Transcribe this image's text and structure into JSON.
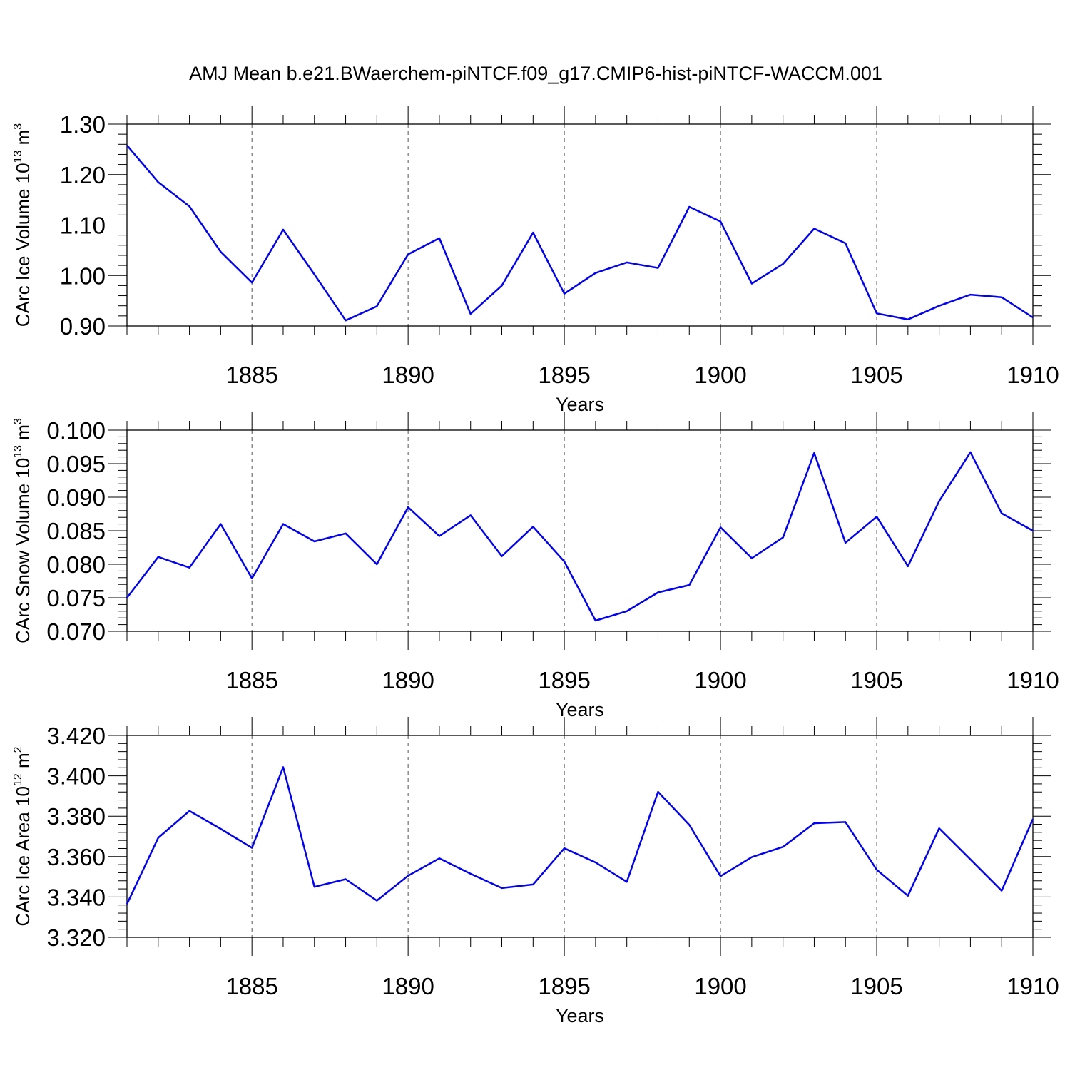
{
  "chart_data": {
    "type": "line",
    "title": "AMJ Mean b.e21.BWaerchem-piNTCF.f09_g17.CMIP6-hist-piNTCF-WACCM.001",
    "line_color": "#0000ff",
    "panels": [
      {
        "ylabel_text": "CArc Ice Volume 10",
        "ylabel_exp": "13",
        "ylabel_unit": " m",
        "ylabel_unit_exp": "3",
        "xlabel": "Years",
        "xlim": [
          1881,
          1910
        ],
        "ylim": [
          0.9,
          1.3
        ],
        "yticks": [
          0.9,
          1.0,
          1.1,
          1.2,
          1.3
        ],
        "ytick_labels": [
          "0.90",
          "1.00",
          "1.10",
          "1.20",
          "1.30"
        ],
        "xticks": [
          1885,
          1890,
          1895,
          1900,
          1905,
          1910
        ],
        "xtick_labels": [
          "1885",
          "1890",
          "1895",
          "1900",
          "1905",
          "1910"
        ],
        "x": [
          1881,
          1882,
          1883,
          1884,
          1885,
          1886,
          1887,
          1888,
          1889,
          1890,
          1891,
          1892,
          1893,
          1894,
          1895,
          1896,
          1897,
          1898,
          1899,
          1900,
          1901,
          1902,
          1903,
          1904,
          1905,
          1906,
          1907,
          1908,
          1909,
          1910
        ],
        "values": [
          1.258,
          1.185,
          1.137,
          1.047,
          0.986,
          1.091,
          1.002,
          0.911,
          0.939,
          1.042,
          1.074,
          0.924,
          0.98,
          1.085,
          0.964,
          1.005,
          1.026,
          1.015,
          1.136,
          1.107,
          0.984,
          1.023,
          1.093,
          1.064,
          0.925,
          0.913,
          0.94,
          0.962,
          0.957,
          0.917
        ]
      },
      {
        "ylabel_text": "CArc Snow Volume 10",
        "ylabel_exp": "13",
        "ylabel_unit": " m",
        "ylabel_unit_exp": "3",
        "xlabel": "Years",
        "xlim": [
          1881,
          1910
        ],
        "ylim": [
          0.07,
          0.1
        ],
        "yticks": [
          0.07,
          0.075,
          0.08,
          0.085,
          0.09,
          0.095,
          0.1
        ],
        "ytick_labels": [
          "0.070",
          "0.075",
          "0.080",
          "0.085",
          "0.090",
          "0.095",
          "0.100"
        ],
        "xticks": [
          1885,
          1890,
          1895,
          1900,
          1905,
          1910
        ],
        "xtick_labels": [
          "1885",
          "1890",
          "1895",
          "1900",
          "1905",
          "1910"
        ],
        "x": [
          1881,
          1882,
          1883,
          1884,
          1885,
          1886,
          1887,
          1888,
          1889,
          1890,
          1891,
          1892,
          1893,
          1894,
          1895,
          1896,
          1897,
          1898,
          1899,
          1900,
          1901,
          1902,
          1903,
          1904,
          1905,
          1906,
          1907,
          1908,
          1909,
          1910
        ],
        "values": [
          0.075,
          0.0811,
          0.0795,
          0.086,
          0.0779,
          0.086,
          0.0834,
          0.0846,
          0.08,
          0.0885,
          0.0842,
          0.0873,
          0.0812,
          0.0856,
          0.0804,
          0.0716,
          0.073,
          0.0758,
          0.0769,
          0.0855,
          0.0809,
          0.084,
          0.0966,
          0.0832,
          0.0871,
          0.0797,
          0.0894,
          0.0967,
          0.0876,
          0.085
        ]
      },
      {
        "ylabel_text": "CArc Ice Area 10",
        "ylabel_exp": "12",
        "ylabel_unit": " m",
        "ylabel_unit_exp": "2",
        "xlabel": "Years",
        "xlim": [
          1881,
          1910
        ],
        "ylim": [
          3.32,
          3.42
        ],
        "yticks": [
          3.32,
          3.34,
          3.36,
          3.38,
          3.4,
          3.42
        ],
        "ytick_labels": [
          "3.320",
          "3.340",
          "3.360",
          "3.380",
          "3.400",
          "3.420"
        ],
        "xticks": [
          1885,
          1890,
          1895,
          1900,
          1905,
          1910
        ],
        "xtick_labels": [
          "1885",
          "1890",
          "1895",
          "1900",
          "1905",
          "1910"
        ],
        "x": [
          1881,
          1882,
          1883,
          1884,
          1885,
          1886,
          1887,
          1888,
          1889,
          1890,
          1891,
          1892,
          1893,
          1894,
          1895,
          1896,
          1897,
          1898,
          1899,
          1900,
          1901,
          1902,
          1903,
          1904,
          1905,
          1906,
          1907,
          1908,
          1909,
          1910
        ],
        "values": [
          3.3365,
          3.3693,
          3.3826,
          3.3737,
          3.3643,
          3.4043,
          3.345,
          3.3488,
          3.3382,
          3.3505,
          3.3591,
          3.3515,
          3.3444,
          3.3462,
          3.3641,
          3.3571,
          3.3475,
          3.3921,
          3.3757,
          3.3503,
          3.3597,
          3.3648,
          3.3765,
          3.3771,
          3.3535,
          3.3406,
          3.374,
          3.3586,
          3.3431,
          3.3786
        ]
      }
    ]
  }
}
